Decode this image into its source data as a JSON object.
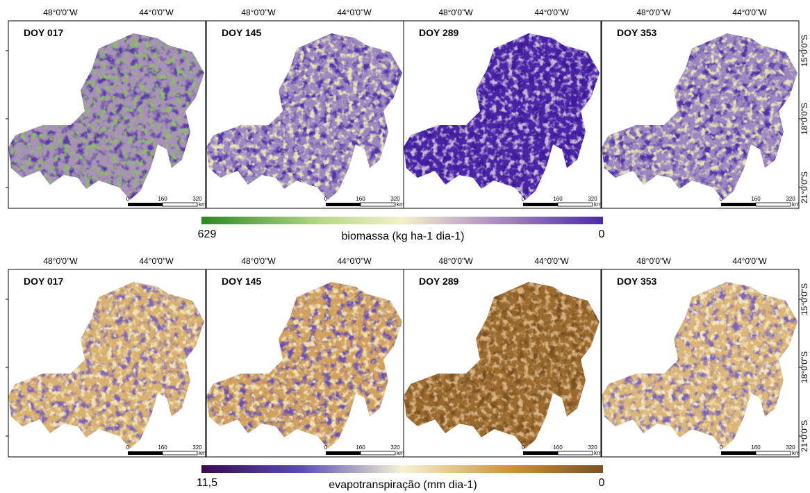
{
  "rows": [
    {
      "panels": [
        {
          "label": "DOY 017"
        },
        {
          "label": "DOY 145"
        },
        {
          "label": "DOY 289"
        },
        {
          "label": "DOY 353"
        }
      ],
      "colorbar": {
        "min_label": "629",
        "max_label": "0",
        "title": "biomassa (kg ha-1 dia-1)"
      }
    },
    {
      "panels": [
        {
          "label": "DOY 017"
        },
        {
          "label": "DOY 145"
        },
        {
          "label": "DOY 289"
        },
        {
          "label": "DOY 353"
        }
      ],
      "colorbar": {
        "min_label": "11,5",
        "max_label": "0",
        "title": "evapotranspiração (mm dia-1)"
      }
    }
  ],
  "longitude_labels": [
    "48°0'0\"W",
    "44°0'0\"W"
  ],
  "latitude_labels": [
    "15°0'0\"S",
    "18°0'0\"S",
    "21°0'0\"S"
  ],
  "scale_bar": {
    "ticks": [
      "0",
      "160",
      "320"
    ],
    "unit": "km"
  }
}
